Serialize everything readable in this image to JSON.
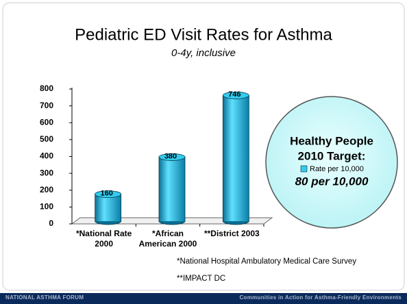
{
  "chart_data": {
    "type": "bar",
    "title": "Pediatric ED Visit Rates for Asthma",
    "subtitle": "0-4y, inclusive",
    "categories": [
      "*National Rate 2000",
      "*African American 2000",
      "**District 2003"
    ],
    "series": [
      {
        "name": "Rate per 10,000",
        "color": "#33ccee",
        "values": [
          160,
          380,
          746
        ]
      }
    ],
    "ylim": [
      0,
      800
    ],
    "yticks": [
      0,
      100,
      200,
      300,
      400,
      500,
      600,
      700,
      800
    ],
    "callout": {
      "heading": "Healthy People 2010 Target:",
      "target": "80 per 10,000"
    },
    "notes": [
      "*National Hospital Ambulatory Medical Care Survey",
      "**IMPACT DC"
    ]
  },
  "footer": {
    "left": "NATIONAL ASTHMA FORUM",
    "right": "Communities in Action for Asthma-Friendly Environments"
  }
}
